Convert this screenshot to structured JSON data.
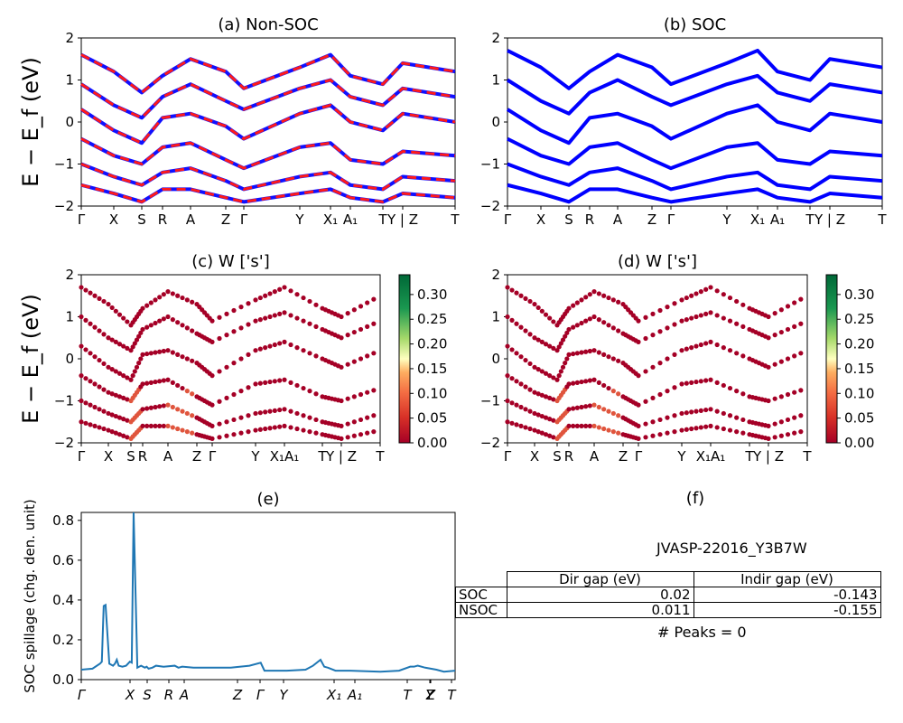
{
  "chart_data": [
    {
      "id": "a",
      "type": "line",
      "title": "(a) Non-SOC",
      "ylabel": "E − E_f (eV)",
      "ylim": [
        -2,
        2
      ],
      "yticks": [
        "2",
        "1",
        "0",
        "−1",
        "−2"
      ],
      "xticklabels": [
        "Γ",
        "X",
        "S",
        "R",
        "A",
        "Z",
        "Γ",
        "Y",
        "X₁",
        "A₁",
        "T",
        "Y | Z",
        "T"
      ],
      "series": [
        {
          "values": [
            1.6,
            1.2,
            0.7,
            1.1,
            1.5,
            1.2,
            0.8,
            1.3,
            1.6,
            1.1,
            0.9,
            1.4,
            1.2
          ]
        },
        {
          "values": [
            0.9,
            0.4,
            0.1,
            0.6,
            0.9,
            0.5,
            0.3,
            0.8,
            1.0,
            0.6,
            0.4,
            0.8,
            0.6
          ]
        },
        {
          "values": [
            0.3,
            -0.2,
            -0.5,
            0.1,
            0.2,
            -0.1,
            -0.4,
            0.2,
            0.4,
            0.0,
            -0.2,
            0.2,
            0.0
          ]
        },
        {
          "values": [
            -0.4,
            -0.8,
            -1.0,
            -0.6,
            -0.5,
            -0.9,
            -1.1,
            -0.6,
            -0.5,
            -0.9,
            -1.0,
            -0.7,
            -0.8
          ]
        },
        {
          "values": [
            -1.0,
            -1.3,
            -1.5,
            -1.2,
            -1.1,
            -1.4,
            -1.6,
            -1.3,
            -1.2,
            -1.5,
            -1.6,
            -1.3,
            -1.4
          ]
        },
        {
          "values": [
            -1.5,
            -1.7,
            -1.9,
            -1.6,
            -1.6,
            -1.8,
            -1.9,
            -1.7,
            -1.6,
            -1.8,
            -1.9,
            -1.7,
            -1.8
          ]
        }
      ]
    },
    {
      "id": "b",
      "type": "line",
      "title": "(b) SOC",
      "ylim": [
        -2,
        2
      ],
      "yticks": [
        "2",
        "1",
        "0",
        "−1",
        "−2"
      ],
      "xticklabels": [
        "Γ",
        "X",
        "S",
        "R",
        "A",
        "Z",
        "Γ",
        "Y",
        "X₁",
        "A₁",
        "T",
        "Y | Z",
        "T"
      ],
      "series": [
        {
          "values": [
            1.7,
            1.3,
            0.8,
            1.2,
            1.6,
            1.3,
            0.9,
            1.4,
            1.7,
            1.2,
            1.0,
            1.5,
            1.3
          ]
        },
        {
          "values": [
            1.0,
            0.5,
            0.2,
            0.7,
            1.0,
            0.6,
            0.4,
            0.9,
            1.1,
            0.7,
            0.5,
            0.9,
            0.7
          ]
        },
        {
          "values": [
            0.3,
            -0.2,
            -0.5,
            0.1,
            0.2,
            -0.1,
            -0.4,
            0.2,
            0.4,
            0.0,
            -0.2,
            0.2,
            0.0
          ]
        },
        {
          "values": [
            -0.4,
            -0.8,
            -1.0,
            -0.6,
            -0.5,
            -0.9,
            -1.1,
            -0.6,
            -0.5,
            -0.9,
            -1.0,
            -0.7,
            -0.8
          ]
        },
        {
          "values": [
            -1.0,
            -1.3,
            -1.5,
            -1.2,
            -1.1,
            -1.4,
            -1.6,
            -1.3,
            -1.2,
            -1.5,
            -1.6,
            -1.3,
            -1.4
          ]
        },
        {
          "values": [
            -1.5,
            -1.7,
            -1.9,
            -1.6,
            -1.6,
            -1.8,
            -1.9,
            -1.7,
            -1.6,
            -1.8,
            -1.9,
            -1.7,
            -1.8
          ]
        }
      ]
    },
    {
      "id": "c",
      "type": "scatter",
      "title": "(c)  W ['s']",
      "ylabel": "E − E_f (eV)",
      "ylim": [
        -2,
        2
      ],
      "yticks": [
        "2",
        "1",
        "0",
        "−1",
        "−2"
      ],
      "xticklabels": [
        "Γ",
        "X",
        "S",
        "R",
        "A",
        "Z",
        "Γ",
        "Y",
        "X₁A₁",
        "T",
        "Y | Z",
        "T"
      ],
      "colorbar": {
        "ticks": [
          "0.30",
          "0.25",
          "0.20",
          "0.15",
          "0.10",
          "0.05",
          "0.00"
        ],
        "min": 0.0,
        "max": 0.34
      }
    },
    {
      "id": "d",
      "type": "scatter",
      "title": "(d) W ['s']",
      "ylim": [
        -2,
        2
      ],
      "yticks": [
        "2",
        "1",
        "0",
        "−1",
        "−2"
      ],
      "xticklabels": [
        "Γ",
        "X",
        "S",
        "R",
        "A",
        "Z",
        "Γ",
        "Y",
        "X₁A₁",
        "T",
        "Y | Z",
        "T"
      ],
      "colorbar": {
        "ticks": [
          "0.30",
          "0.25",
          "0.20",
          "0.15",
          "0.10",
          "0.05",
          "0.00"
        ],
        "min": 0.0,
        "max": 0.34
      }
    },
    {
      "id": "e",
      "type": "line",
      "title": "(e)",
      "ylabel": "SOC spillage (chg. den. unit)",
      "ylim": [
        0,
        0.84
      ],
      "yticks": [
        "0.8",
        "0.6",
        "0.4",
        "0.2",
        "0.0"
      ],
      "xticklabels": [
        "Γ",
        "X",
        "S",
        "R",
        "A",
        "Z",
        "Γ",
        "Y",
        "X₁",
        "A₁",
        "T",
        "Y",
        "Z",
        "T"
      ],
      "x": [
        0,
        0.03,
        0.05,
        0.055,
        0.06,
        0.065,
        0.075,
        0.085,
        0.09,
        0.095,
        0.1,
        0.11,
        0.12,
        0.13,
        0.135,
        0.14,
        0.15,
        0.16,
        0.17,
        0.175,
        0.18,
        0.19,
        0.2,
        0.22,
        0.25,
        0.26,
        0.27,
        0.3,
        0.32,
        0.4,
        0.45,
        0.48,
        0.49,
        0.5,
        0.55,
        0.6,
        0.62,
        0.64,
        0.65,
        0.66,
        0.68,
        0.72,
        0.8,
        0.85,
        0.88,
        0.89,
        0.9,
        0.92,
        0.95,
        0.97,
        1.0
      ],
      "values": [
        0.05,
        0.055,
        0.08,
        0.09,
        0.37,
        0.375,
        0.08,
        0.07,
        0.08,
        0.1,
        0.07,
        0.065,
        0.07,
        0.09,
        0.085,
        0.84,
        0.06,
        0.07,
        0.06,
        0.065,
        0.055,
        0.06,
        0.07,
        0.065,
        0.07,
        0.06,
        0.065,
        0.06,
        0.06,
        0.06,
        0.07,
        0.085,
        0.045,
        0.045,
        0.045,
        0.05,
        0.07,
        0.1,
        0.065,
        0.06,
        0.045,
        0.045,
        0.04,
        0.045,
        0.065,
        0.065,
        0.07,
        0.06,
        0.05,
        0.04,
        0.045
      ]
    }
  ],
  "panel_f": {
    "title": "(f)",
    "material_id": "JVASP-22016_Y3B7W",
    "table": {
      "headers": [
        "",
        "Dir gap (eV)",
        "Indir gap (eV)"
      ],
      "rows": [
        [
          "SOC",
          "0.02",
          "-0.143"
        ],
        [
          "NSOC",
          "0.011",
          "-0.155"
        ]
      ]
    },
    "peaks_text": "# Peaks = 0"
  }
}
